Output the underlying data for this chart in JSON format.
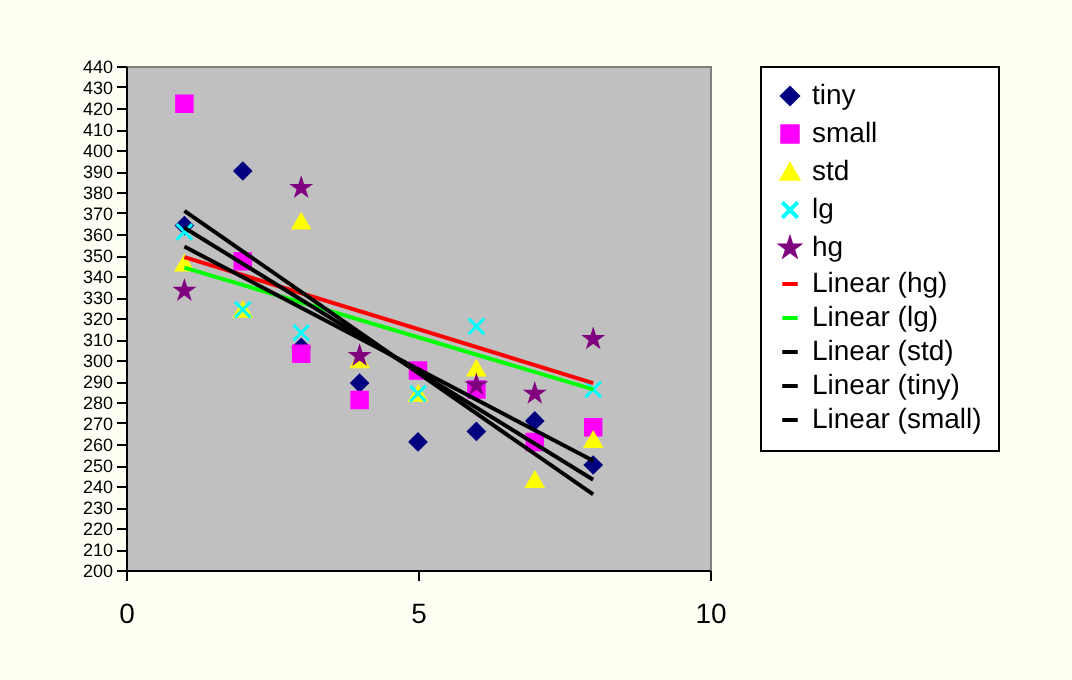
{
  "chart_data": {
    "type": "scatter",
    "xlim": [
      0,
      10
    ],
    "ylim": [
      200,
      440
    ],
    "xticks": [
      0,
      5,
      10
    ],
    "yticks": [
      200,
      210,
      220,
      230,
      240,
      250,
      260,
      270,
      280,
      290,
      300,
      310,
      320,
      330,
      340,
      350,
      360,
      370,
      380,
      390,
      400,
      410,
      420,
      430,
      440
    ],
    "grid": false,
    "legend": "right",
    "series": [
      {
        "name": "tiny",
        "color": "#000080",
        "marker": "diamond",
        "x": [
          1,
          2,
          3,
          4,
          5,
          6,
          7,
          8
        ],
        "values": [
          364,
          390,
          306,
          289,
          261,
          266,
          271,
          250
        ]
      },
      {
        "name": "small",
        "color": "#ff00ff",
        "marker": "square",
        "x": [
          1,
          2,
          3,
          4,
          5,
          6,
          7,
          8
        ],
        "values": [
          422,
          347,
          303,
          281,
          295,
          286,
          261,
          268
        ]
      },
      {
        "name": "std",
        "color": "#ffff00",
        "marker": "triangle",
        "x": [
          1,
          2,
          3,
          4,
          5,
          6,
          7,
          8
        ],
        "values": [
          346,
          324,
          366,
          300,
          284,
          296,
          243,
          262
        ]
      },
      {
        "name": "lg",
        "color": "#00ffff",
        "marker": "cross",
        "x": [
          1,
          2,
          3,
          5,
          6,
          8
        ],
        "values": [
          361,
          324,
          313,
          284,
          316,
          286
        ]
      },
      {
        "name": "hg",
        "color": "#800080",
        "marker": "star",
        "x": [
          1,
          3,
          4,
          6,
          7,
          8
        ],
        "values": [
          333,
          382,
          302,
          288,
          284,
          310
        ]
      },
      {
        "name": "Linear (hg)",
        "type": "line",
        "color": "#ff0000",
        "marker": "none",
        "x": [
          1,
          8
        ],
        "values": [
          349,
          289
        ]
      },
      {
        "name": "Linear (lg)",
        "type": "line",
        "color": "#00ff00",
        "marker": "none",
        "x": [
          1,
          8
        ],
        "values": [
          344,
          286
        ]
      },
      {
        "name": "Linear (std)",
        "type": "line",
        "color": "#000000",
        "marker": "none",
        "x": [
          1,
          8
        ],
        "values": [
          354,
          252
        ]
      },
      {
        "name": "Linear (tiny)",
        "type": "line",
        "color": "#000000",
        "marker": "none",
        "x": [
          1,
          8
        ],
        "values": [
          363,
          243
        ]
      },
      {
        "name": "Linear (small)",
        "type": "line",
        "color": "#000000",
        "marker": "none",
        "x": [
          1,
          8
        ],
        "values": [
          371,
          236
        ]
      }
    ]
  }
}
